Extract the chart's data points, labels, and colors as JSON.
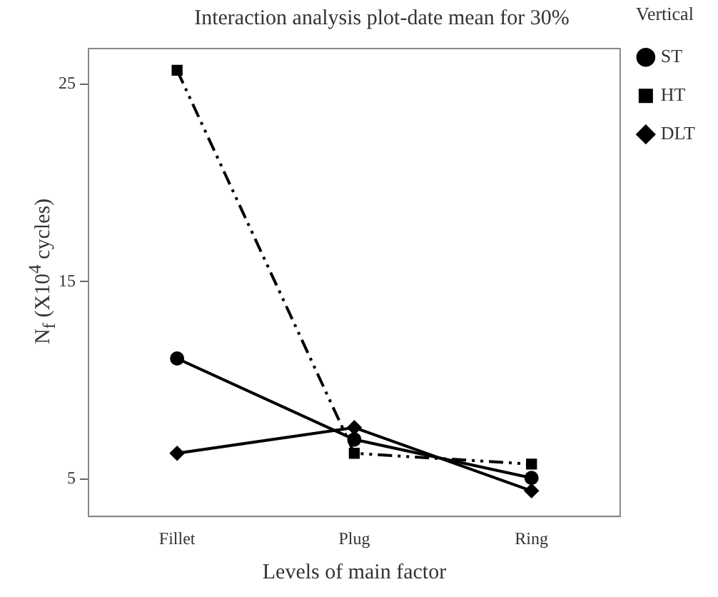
{
  "chart_data": {
    "type": "line",
    "title": "Interaction analysis plot-date mean for 30%",
    "xlabel": "Levels of main factor",
    "ylabel": "N$_{f}$ (X10$^{4}$ cycles)",
    "legend_title": "Vertical",
    "categories": [
      "Fillet",
      "Plug",
      "Ring"
    ],
    "series": [
      {
        "name": "ST",
        "color": "#000000",
        "values": [
          11.1,
          7.0,
          5.05
        ],
        "marker": "circle",
        "line_style": "solid"
      },
      {
        "name": "HT",
        "color": "#000000",
        "values": [
          25.7,
          6.3,
          5.75
        ],
        "marker": "square",
        "line_style": "dashed"
      },
      {
        "name": "DLT",
        "color": "#000000",
        "values": [
          6.3,
          7.6,
          4.4
        ],
        "marker": "diamond",
        "line_style": "solid"
      }
    ],
    "ylim": [
      3.1,
      26.8
    ],
    "yticks": [
      5,
      15,
      25
    ],
    "grid": false,
    "legend": "right"
  }
}
